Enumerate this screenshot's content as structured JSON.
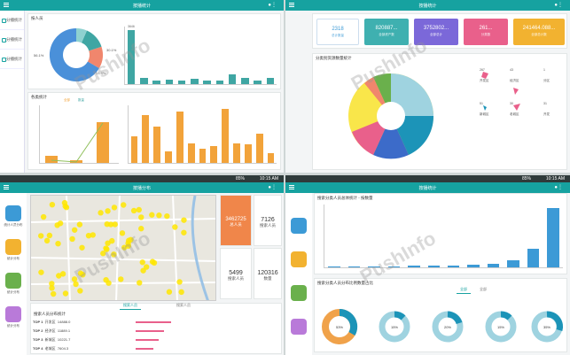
{
  "watermark": "PushInfo",
  "quadrants": {
    "q1": {
      "title": "按播统计",
      "sidebar": [
        {
          "label": "分播统计"
        },
        {
          "label": "分播统计"
        },
        {
          "label": "分播统计"
        }
      ],
      "panel_a_title": "按人员",
      "panel_b_title": "各类统计",
      "donut": {
        "labels": [
          "56.1%",
          "30.1%",
          "13.5%",
          "12.8%"
        ],
        "colors": [
          "#4a90d9",
          "#f0866d",
          "#3fa6a3",
          "#8ed1d0"
        ]
      },
      "bars_top": {
        "values": [
          82,
          10,
          6,
          7,
          5,
          8,
          6,
          6,
          15,
          10,
          5,
          9
        ],
        "labels": [
          "3646",
          "",
          "",
          "",
          "",
          "",
          "",
          "",
          "",
          "",
          "",
          ""
        ]
      },
      "bars_mid_left": {
        "labels": [
          "全部",
          "第二",
          "第三"
        ],
        "values": [
          12,
          4,
          70
        ]
      },
      "bars_mid_right": {
        "values": [
          40,
          72,
          55,
          18,
          78,
          30,
          22,
          25,
          82,
          30,
          28,
          45,
          15
        ]
      },
      "legend": [
        "全部",
        "数量"
      ]
    },
    "q2": {
      "title": "按播统计",
      "cards": [
        {
          "value": "2318",
          "sub": "总计数量",
          "color": "#3c9ad6"
        },
        {
          "value": "820887...",
          "sub": "全部资产数",
          "color": "#3fb0b0"
        },
        {
          "value": "3752802...",
          "sub": "全部总计",
          "color": "#7b68d9"
        },
        {
          "value": "261...",
          "sub": "分类数",
          "color": "#e9608b"
        },
        {
          "value": "241464.088...",
          "sub": "全部总计数",
          "color": "#f2b230"
        }
      ],
      "panel_title": "分类别资源数量统计",
      "pie": {
        "colors": [
          "#f9e64a",
          "#e9608b",
          "#3c6bc9",
          "#1c94b8",
          "#9fd3e0",
          "#6ab04c",
          "#f0866d",
          "#a3a3ff"
        ]
      },
      "legend_items": [
        {
          "label": "开发区",
          "value": "267"
        },
        {
          "label": "经济区",
          "value": "43"
        },
        {
          "label": "分区",
          "value": "1"
        },
        {
          "label": "新城区",
          "value": "51"
        },
        {
          "label": "老城区",
          "value": "30"
        },
        {
          "label": "开发",
          "value": "31"
        }
      ]
    },
    "q3": {
      "title": "按播分布",
      "statusbar": {
        "signal": "85%",
        "time": "10:15 AM"
      },
      "side_items": [
        {
          "label": "统计人员分布",
          "color": "#3c9ad6"
        },
        {
          "label": "统计分布",
          "color": "#f2b230"
        },
        {
          "label": "统计分布",
          "color": "#6ab04c"
        },
        {
          "label": "统计分布",
          "color": "#b97ad9"
        }
      ],
      "stats": [
        {
          "value": "3462725",
          "caption": "总人员",
          "style": "orange"
        },
        {
          "value": "7126",
          "caption": "搜索人员"
        },
        {
          "value": "5499",
          "caption": "搜索人员"
        },
        {
          "value": "120316",
          "caption": "数量"
        }
      ],
      "tabs": [
        "搜索人员",
        "搜索人员"
      ],
      "list_title": "搜索人员分布统计",
      "rows": [
        {
          "rank": "TOP 1",
          "name": "开发区",
          "value": "14888.0"
        },
        {
          "rank": "TOP 2",
          "name": "经济区",
          "value": "11889.1"
        },
        {
          "rank": "TOP 3",
          "name": "新城区",
          "value": "10221.7"
        },
        {
          "rank": "TOP 4",
          "name": "老城区",
          "value": "7604.3"
        }
      ]
    },
    "q4": {
      "title": "按播统计",
      "statusbar": {
        "signal": "85%",
        "time": "10:15 AM"
      },
      "panel_a_title": "搜索分类人员总体统计 - 按数量",
      "bars": {
        "values": [
          2,
          2,
          2,
          2,
          3,
          3,
          3,
          4,
          5,
          12,
          30,
          95
        ]
      },
      "panel_b_title": "搜索分类人员分布比例数量占比",
      "tabs": [
        "全部",
        "全部"
      ],
      "donuts": [
        {
          "pct": "53%"
        },
        {
          "pct": "15%"
        },
        {
          "pct": "20%"
        },
        {
          "pct": "15%"
        },
        {
          "pct": "35%"
        }
      ]
    }
  }
}
